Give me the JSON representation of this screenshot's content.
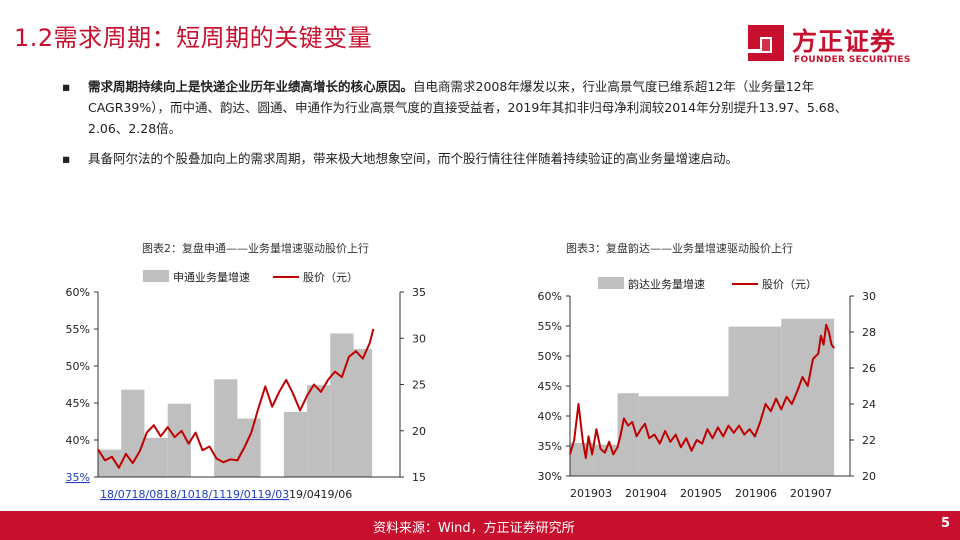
{
  "title": "1.2需求周期：短周期的关键变量",
  "logo": {
    "cn": "方正证券",
    "en": "FOUNDER SECURITIES"
  },
  "bullets": [
    {
      "mark": "▪",
      "bold": "需求周期持续向上是快递企业历年业绩高增长的核心原因。",
      "text": "自电商需求2008年爆发以来，行业高景气度已维系超12年（业务量12年CAGR39%），而中通、韵达、圆通、申通作为行业高景气度的直接受益者，2019年其扣非归母净利润较2014年分别提升13.97、5.68、2.06、2.28倍。"
    },
    {
      "mark": "▪",
      "bold": "",
      "text": "具备阿尔法的个股叠加向上的需求周期，带来极大地想象空间，而个股行情往往伴随着持续验证的高业务量增速启动。"
    }
  ],
  "footer": {
    "source": "资料来源：Wind，方正证券研究所",
    "page": "5"
  },
  "colors": {
    "brand": "#c8102e",
    "bar": "#bfbfbf",
    "line": "#c00000",
    "link": "#1f3fc0"
  },
  "chart_data": [
    {
      "type": "bar",
      "caption": "图表2：复盘申通——业务量增速驱动股价上行",
      "legend": [
        "申通业务量增速",
        "股价（元）"
      ],
      "legend_placement": "top",
      "y_left": {
        "ticks": [
          "60%",
          "55%",
          "50%",
          "45%",
          "40%",
          "35%"
        ],
        "lim": [
          35,
          60
        ]
      },
      "y_right": {
        "ticks": [
          "35",
          "30",
          "25",
          "20",
          "15"
        ],
        "lim": [
          15,
          35
        ]
      },
      "x_ticks": [
        "18/07",
        "18/08",
        "18/10",
        "18/11",
        "19/01",
        "19/03",
        "19/04",
        "19/06"
      ],
      "link_labels": [
        "35%",
        "18/07",
        "18/08",
        "18/10",
        "18/11",
        "19/01",
        "19/03"
      ],
      "x_range": [
        0,
        13
      ],
      "bars": [
        {
          "start": 0,
          "end": 1,
          "value": 38.7
        },
        {
          "start": 1,
          "end": 2,
          "value": 46.8
        },
        {
          "start": 2,
          "end": 3,
          "value": 40.3
        },
        {
          "start": 3,
          "end": 4,
          "value": 44.9
        },
        {
          "start": 5,
          "end": 6,
          "value": 48.2
        },
        {
          "start": 6,
          "end": 7,
          "value": 42.9
        },
        {
          "start": 8,
          "end": 9,
          "value": 43.8
        },
        {
          "start": 9,
          "end": 10,
          "value": 47.4
        },
        {
          "start": 10,
          "end": 11,
          "value": 54.4
        },
        {
          "start": 11,
          "end": 11.8,
          "value": 52.3
        }
      ],
      "price": {
        "x": [
          0,
          0.3,
          0.6,
          0.9,
          1.2,
          1.5,
          1.8,
          2.1,
          2.4,
          2.7,
          3.0,
          3.3,
          3.6,
          3.9,
          4.2,
          4.5,
          4.8,
          5.1,
          5.4,
          5.7,
          6.0,
          6.3,
          6.6,
          6.9,
          7.2,
          7.5,
          7.8,
          8.1,
          8.4,
          8.7,
          9.0,
          9.3,
          9.6,
          9.9,
          10.2,
          10.5,
          10.8,
          11.1,
          11.4,
          11.7,
          11.85
        ],
        "y": [
          18.0,
          16.8,
          17.2,
          16.0,
          17.5,
          16.5,
          17.8,
          19.8,
          20.6,
          19.4,
          20.4,
          19.3,
          20.0,
          18.6,
          19.8,
          17.9,
          18.3,
          17.0,
          16.6,
          16.9,
          16.8,
          18.2,
          19.8,
          22.4,
          24.8,
          22.6,
          24.2,
          25.5,
          24.0,
          22.2,
          23.8,
          25.0,
          24.2,
          25.5,
          26.4,
          25.8,
          28.0,
          28.6,
          27.8,
          29.5,
          31.0
        ]
      }
    },
    {
      "type": "bar",
      "caption": "图表3：复盘韵达——业务量增速驱动股价上行",
      "legend": [
        "韵达业务量增速",
        "股价（元）"
      ],
      "legend_placement": "top",
      "y_left": {
        "ticks": [
          "60%",
          "55%",
          "50%",
          "45%",
          "40%",
          "35%",
          "30%"
        ],
        "lim": [
          30,
          60
        ]
      },
      "y_right": {
        "ticks": [
          "30",
          "28",
          "26",
          "24",
          "22",
          "20"
        ],
        "lim": [
          20,
          30
        ]
      },
      "x_ticks": [
        "201903",
        "201904",
        "201905",
        "201906",
        "201907"
      ],
      "x_range": [
        0,
        5.3
      ],
      "bars": [
        {
          "start": 0,
          "end": 0.45,
          "value": 35.5
        },
        {
          "start": 0.45,
          "end": 0.9,
          "value": 35.2
        },
        {
          "start": 0.9,
          "end": 1.3,
          "value": 43.8
        },
        {
          "start": 1.3,
          "end": 3.0,
          "value": 43.3
        },
        {
          "start": 3.0,
          "end": 4.0,
          "value": 54.9
        },
        {
          "start": 4.0,
          "end": 5.0,
          "value": 56.2
        }
      ],
      "price": {
        "x": [
          0,
          0.08,
          0.16,
          0.24,
          0.3,
          0.35,
          0.42,
          0.5,
          0.58,
          0.66,
          0.74,
          0.82,
          0.9,
          0.96,
          1.02,
          1.1,
          1.18,
          1.26,
          1.34,
          1.42,
          1.5,
          1.6,
          1.7,
          1.8,
          1.9,
          2.0,
          2.1,
          2.2,
          2.3,
          2.4,
          2.5,
          2.6,
          2.7,
          2.8,
          2.9,
          3.0,
          3.1,
          3.2,
          3.3,
          3.4,
          3.5,
          3.6,
          3.7,
          3.8,
          3.9,
          4.0,
          4.1,
          4.2,
          4.3,
          4.4,
          4.5,
          4.6,
          4.7,
          4.75,
          4.8,
          4.85,
          4.9,
          4.95,
          5.0
        ],
        "y": [
          21.2,
          22.0,
          24.0,
          22.0,
          21.0,
          22.2,
          21.2,
          22.6,
          21.5,
          21.3,
          21.9,
          21.2,
          21.6,
          22.3,
          23.2,
          22.8,
          23.0,
          22.2,
          22.6,
          22.9,
          22.1,
          22.3,
          21.8,
          22.5,
          21.9,
          22.3,
          21.6,
          22.1,
          21.4,
          22.0,
          21.8,
          22.6,
          22.1,
          22.7,
          22.2,
          22.8,
          22.4,
          22.8,
          22.3,
          22.6,
          22.2,
          23.0,
          24.0,
          23.6,
          24.3,
          23.7,
          24.4,
          24.0,
          24.7,
          25.5,
          25.0,
          26.5,
          26.8,
          27.8,
          27.3,
          28.4,
          28.0,
          27.3,
          27.1
        ]
      }
    }
  ]
}
